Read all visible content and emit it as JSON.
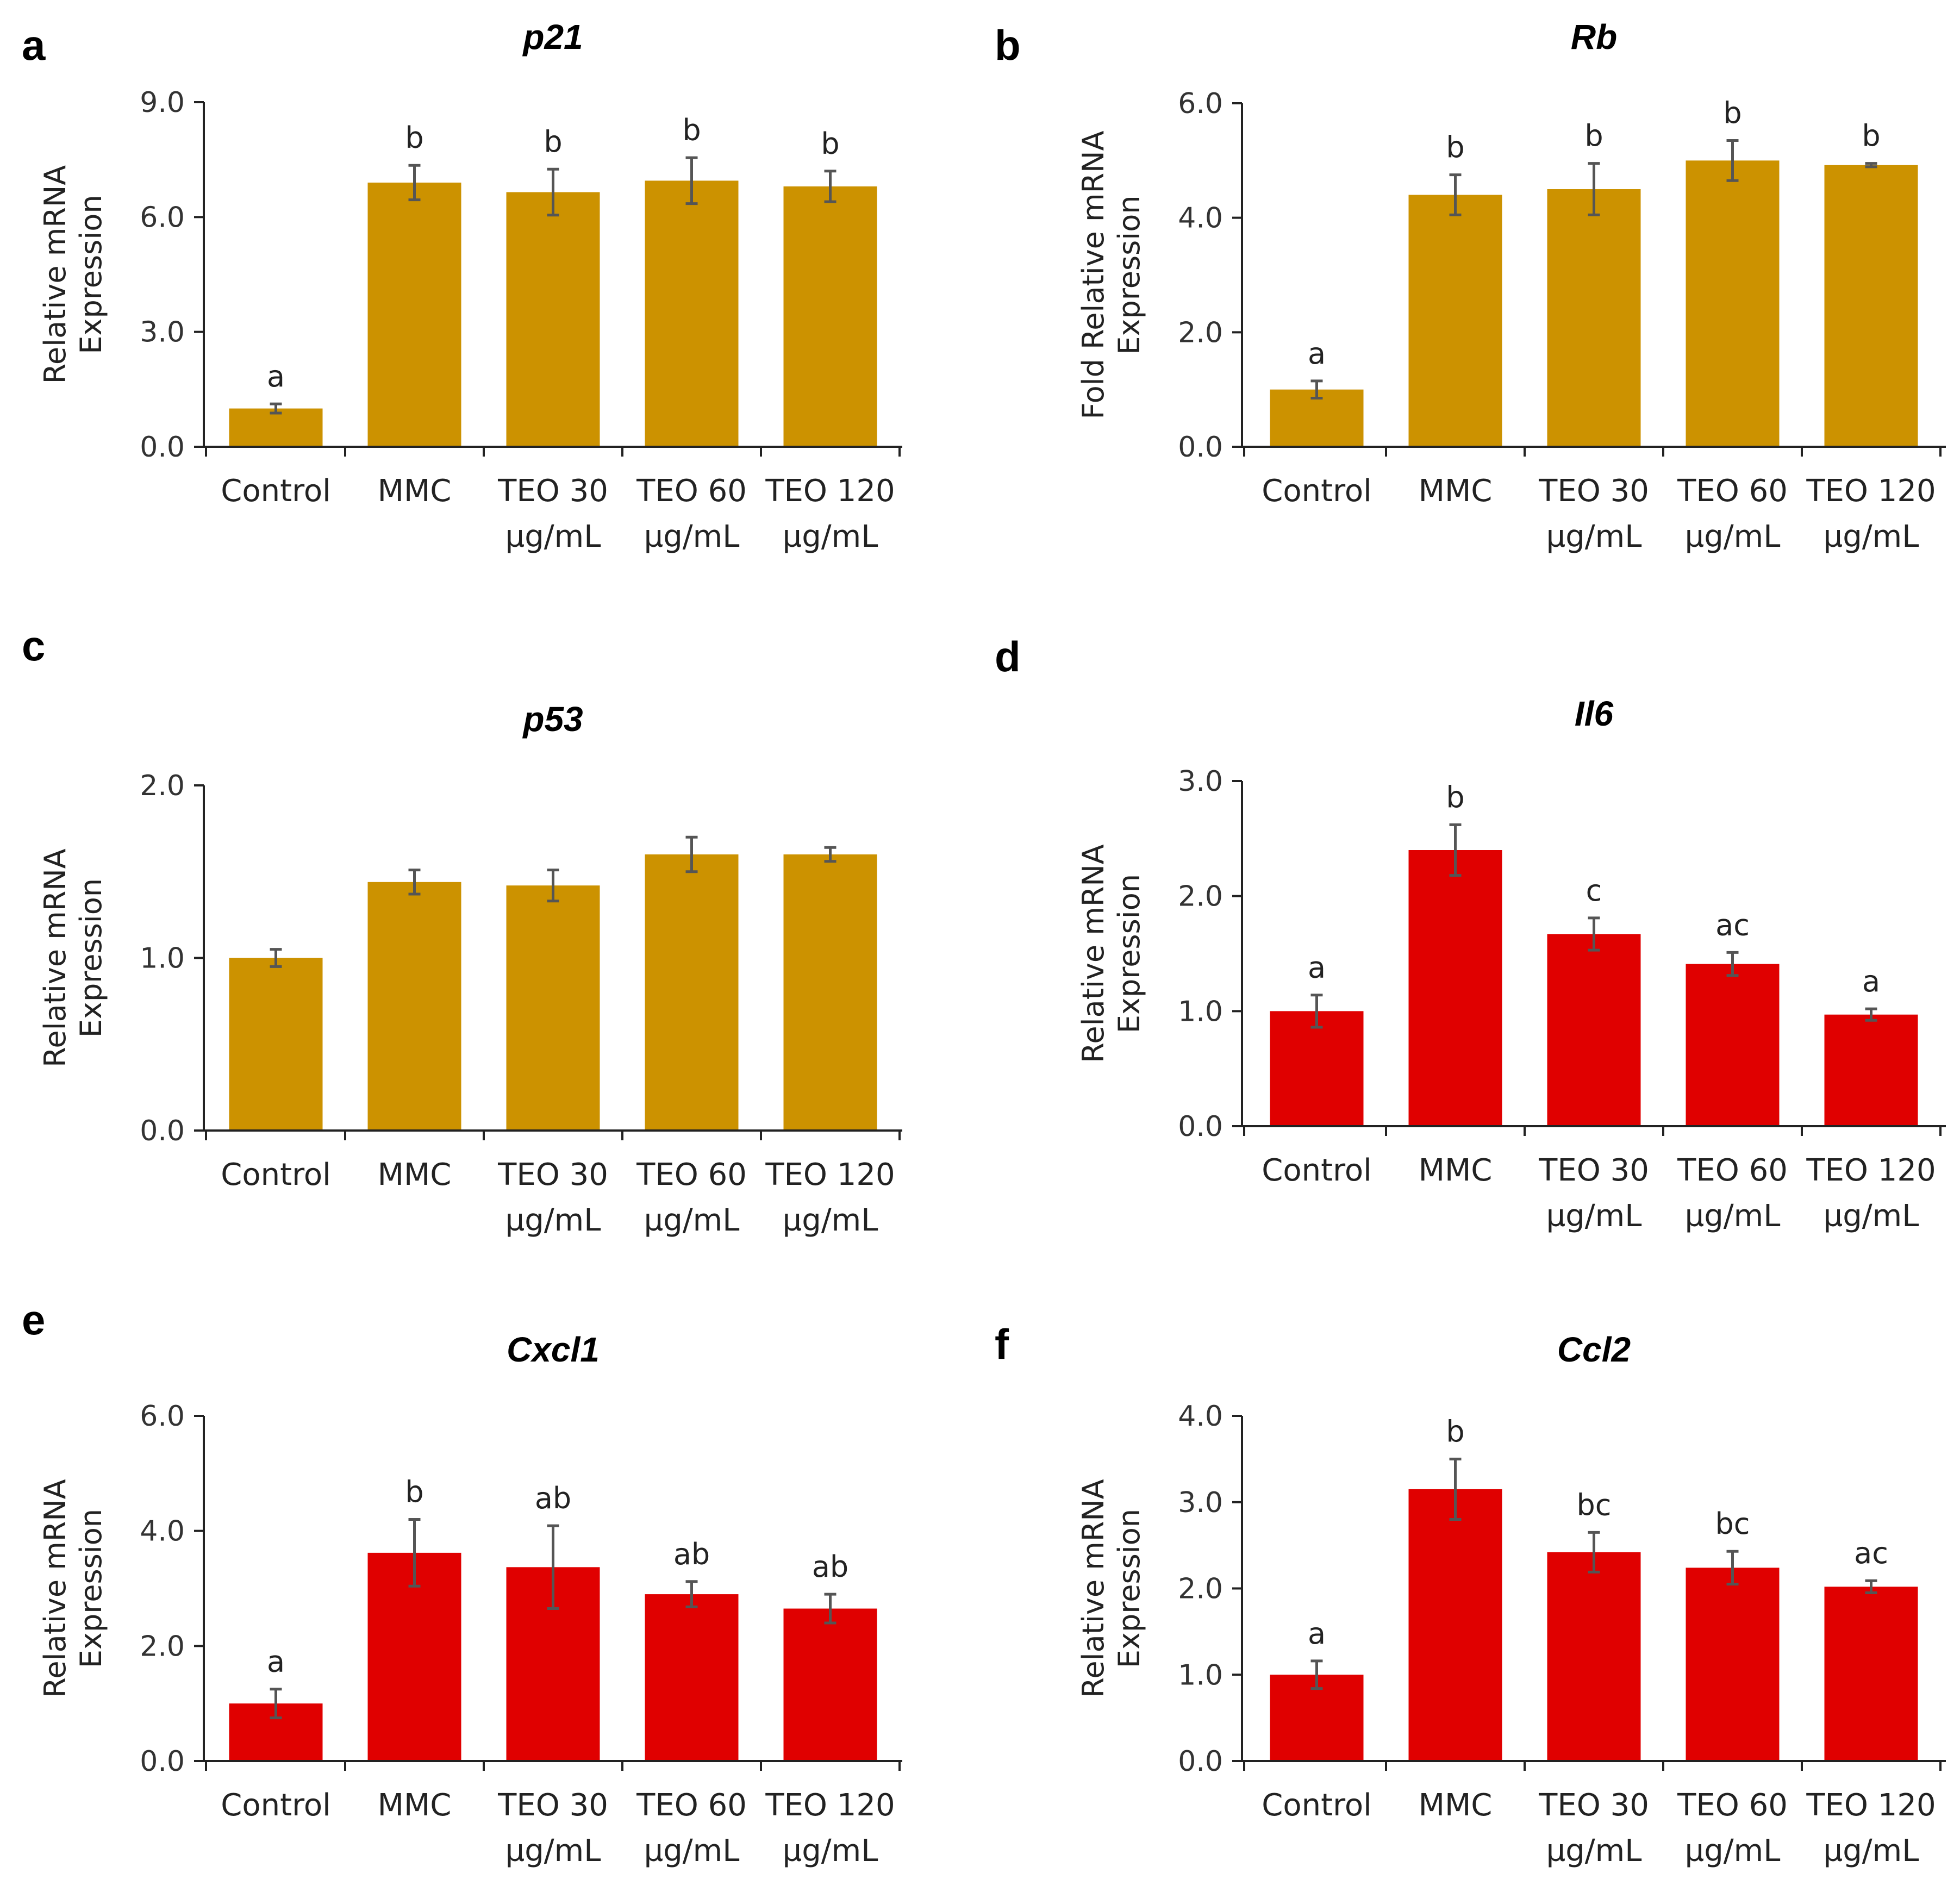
{
  "chart_data": [
    {
      "panel": "a",
      "type": "bar",
      "title": "p21",
      "ylabel": [
        "Relative mRNA",
        "Expression"
      ],
      "ylim": [
        0,
        9
      ],
      "yticks": [
        "0.0",
        "3.0",
        "6.0",
        "9.0"
      ],
      "ytick_values": [
        0,
        3,
        6,
        9
      ],
      "categories": [
        [
          "Control"
        ],
        [
          "MMC"
        ],
        [
          "TEO 30",
          "µg/mL"
        ],
        [
          "TEO 60",
          "µg/mL"
        ],
        [
          "TEO 120",
          "µg/mL"
        ]
      ],
      "values": [
        1.0,
        6.9,
        6.65,
        6.95,
        6.8
      ],
      "errors": [
        0.12,
        0.45,
        0.6,
        0.6,
        0.4
      ],
      "sig": [
        "a",
        "b",
        "b",
        "b",
        "b"
      ],
      "color": "#cc9200"
    },
    {
      "panel": "b",
      "type": "bar",
      "title": "Rb",
      "ylabel": [
        "Fold Relative mRNA",
        "Expression"
      ],
      "ylim": [
        0,
        6
      ],
      "yticks": [
        "0.0",
        "2.0",
        "4.0",
        "6.0"
      ],
      "ytick_values": [
        0,
        2,
        4,
        6
      ],
      "categories": [
        [
          "Control"
        ],
        [
          "MMC"
        ],
        [
          "TEO 30",
          "µg/mL"
        ],
        [
          "TEO 60",
          "µg/mL"
        ],
        [
          "TEO 120",
          "µg/mL"
        ]
      ],
      "values": [
        1.0,
        4.4,
        4.5,
        5.0,
        4.92
      ],
      "errors": [
        0.15,
        0.35,
        0.45,
        0.35,
        0.03
      ],
      "sig": [
        "a",
        "b",
        "b",
        "b",
        "b"
      ],
      "color": "#cc9200"
    },
    {
      "panel": "c",
      "type": "bar",
      "title": "p53",
      "ylabel": [
        "Relative mRNA",
        "Expression"
      ],
      "ylim": [
        0,
        2
      ],
      "yticks": [
        "0.0",
        "1.0",
        "2.0"
      ],
      "ytick_values": [
        0,
        1,
        2
      ],
      "categories": [
        [
          "Control"
        ],
        [
          "MMC"
        ],
        [
          "TEO 30",
          "µg/mL"
        ],
        [
          "TEO 60",
          "µg/mL"
        ],
        [
          "TEO 120",
          "µg/mL"
        ]
      ],
      "values": [
        1.0,
        1.44,
        1.42,
        1.6,
        1.6
      ],
      "errors": [
        0.05,
        0.07,
        0.09,
        0.1,
        0.04
      ],
      "sig": [
        "",
        "",
        "",
        "",
        ""
      ],
      "color": "#cc9200"
    },
    {
      "panel": "d",
      "type": "bar",
      "title": "Il6",
      "ylabel": [
        "Relative mRNA",
        "Expression"
      ],
      "ylim": [
        0,
        3
      ],
      "yticks": [
        "0.0",
        "1.0",
        "2.0",
        "3.0"
      ],
      "ytick_values": [
        0,
        1,
        2,
        3
      ],
      "categories": [
        [
          "Control"
        ],
        [
          "MMC"
        ],
        [
          "TEO 30",
          "µg/mL"
        ],
        [
          "TEO 60",
          "µg/mL"
        ],
        [
          "TEO 120",
          "µg/mL"
        ]
      ],
      "values": [
        1.0,
        2.4,
        1.67,
        1.41,
        0.97
      ],
      "errors": [
        0.14,
        0.22,
        0.14,
        0.1,
        0.05
      ],
      "sig": [
        "a",
        "b",
        "c",
        "ac",
        "a"
      ],
      "color": "#e00000"
    },
    {
      "panel": "e",
      "type": "bar",
      "title": "Cxcl1",
      "ylabel": [
        "Relative mRNA",
        "Expression"
      ],
      "ylim": [
        0,
        6
      ],
      "yticks": [
        "0.0",
        "2.0",
        "4.0",
        "6.0"
      ],
      "ytick_values": [
        0,
        2,
        4,
        6
      ],
      "categories": [
        [
          "Control"
        ],
        [
          "MMC"
        ],
        [
          "TEO 30",
          "µg/mL"
        ],
        [
          "TEO 60",
          "µg/mL"
        ],
        [
          "TEO 120",
          "µg/mL"
        ]
      ],
      "values": [
        1.0,
        3.62,
        3.37,
        2.9,
        2.65
      ],
      "errors": [
        0.25,
        0.58,
        0.72,
        0.22,
        0.25
      ],
      "sig": [
        "a",
        "b",
        "ab",
        "ab",
        "ab"
      ],
      "color": "#e00000"
    },
    {
      "panel": "f",
      "type": "bar",
      "title": "Ccl2",
      "ylabel": [
        "Relative mRNA",
        "Expression"
      ],
      "ylim": [
        0,
        4
      ],
      "yticks": [
        "0.0",
        "1.0",
        "2.0",
        "3.0",
        "4.0"
      ],
      "ytick_values": [
        0,
        1,
        2,
        3,
        4
      ],
      "categories": [
        [
          "Control"
        ],
        [
          "MMC"
        ],
        [
          "TEO 30",
          "µg/mL"
        ],
        [
          "TEO 60",
          "µg/mL"
        ],
        [
          "TEO 120",
          "µg/mL"
        ]
      ],
      "values": [
        1.0,
        3.15,
        2.42,
        2.24,
        2.02
      ],
      "errors": [
        0.16,
        0.35,
        0.23,
        0.19,
        0.07
      ],
      "sig": [
        "a",
        "b",
        "bc",
        "bc",
        "ac"
      ],
      "color": "#e00000"
    }
  ]
}
